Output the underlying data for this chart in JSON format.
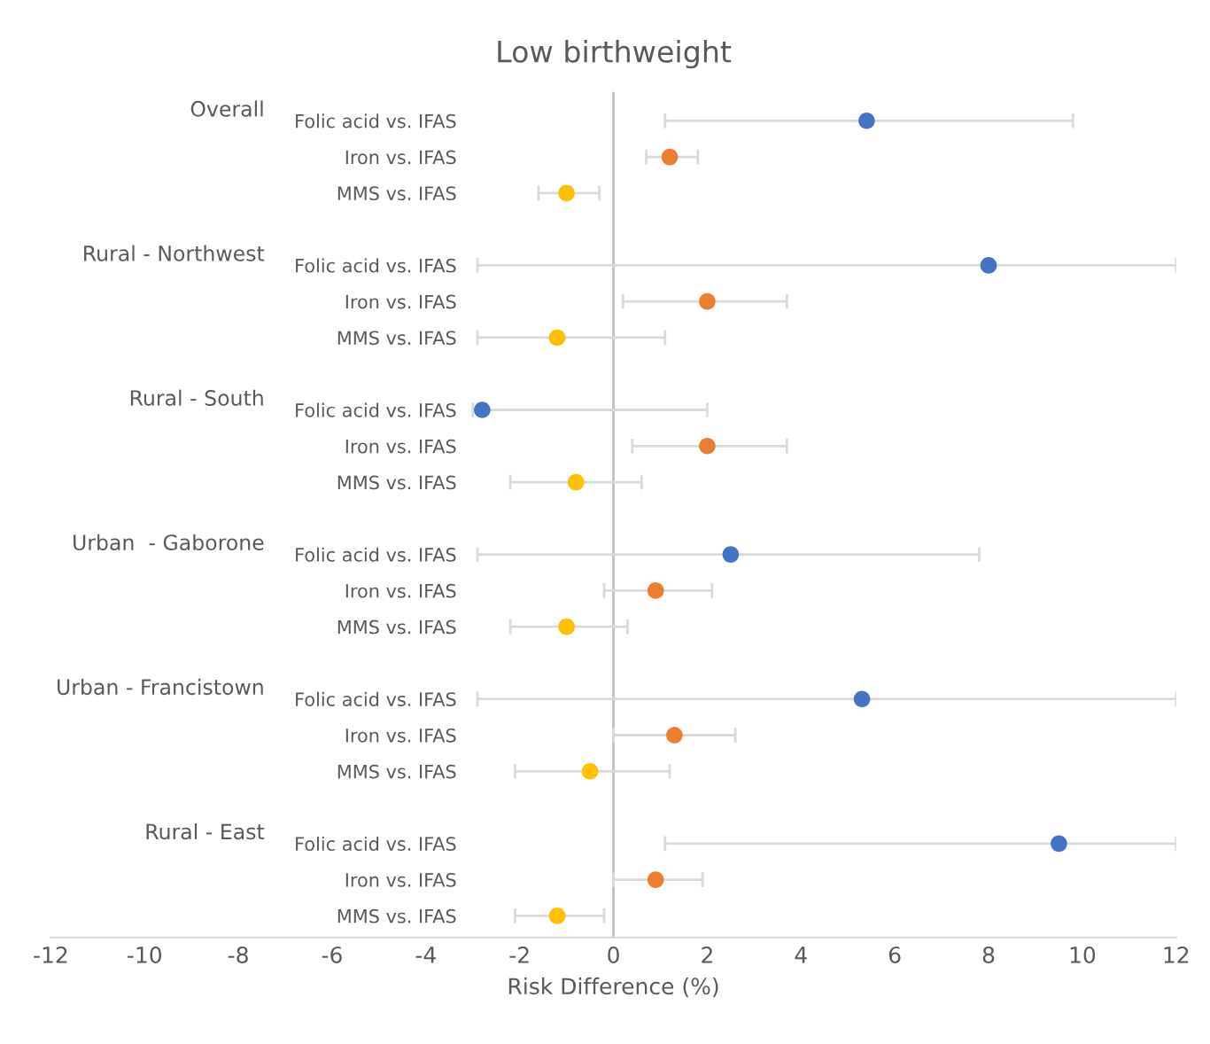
{
  "chart_data": {
    "type": "scatter",
    "orientation": "horizontal",
    "title": "Low birthweight",
    "xlabel": "Risk Difference (%)",
    "categories": [
      "Folic acid vs. IFAS",
      "Iron vs. IFAS",
      "MMS vs. IFAS",
      null,
      "Folic acid vs. IFAS",
      "Iron vs. IFAS",
      "MMS vs. IFAS",
      null,
      "Folic acid vs. IFAS",
      "Iron vs. IFAS",
      "MMS vs. IFAS",
      null,
      "Folic acid vs. IFAS",
      "Iron vs. IFAS",
      "MMS vs. IFAS",
      null,
      "Folic acid vs. IFAS",
      "Iron vs. IFAS",
      "MMS vs. IFAS",
      null,
      "Folic acid vs. IFAS",
      "Iron vs. IFAS",
      "MMS vs. IFAS"
    ],
    "annotations": [
      "Overall",
      "Rural - Northwest",
      "Rural - South",
      "Urban  - Gaborone",
      "Urban - Francistown",
      "Rural - East"
    ],
    "xlim": [
      -12,
      12
    ],
    "xticks": [
      -12,
      -10,
      -8,
      -6,
      -4,
      -2,
      0,
      2,
      4,
      6,
      8,
      10,
      12
    ],
    "grid": false,
    "legend": false,
    "ref_lines": [
      {
        "axis": "x",
        "value": 0,
        "color": "#bfbfbf"
      }
    ],
    "marker": "circle",
    "series": [
      {
        "color": "#4472c4",
        "values": [
          5.4,
          null,
          null,
          null,
          8.0,
          null,
          null,
          null,
          -2.8,
          null,
          null,
          null,
          2.5,
          null,
          null,
          null,
          5.3,
          null,
          null,
          null,
          9.5,
          null,
          null
        ],
        "errors": [
          [
            1.1,
            9.8
          ],
          null,
          null,
          null,
          [
            -2.9,
            12
          ],
          null,
          null,
          null,
          [
            -3.0,
            2.0
          ],
          null,
          null,
          null,
          [
            -2.9,
            7.8
          ],
          null,
          null,
          null,
          [
            -2.9,
            12
          ],
          null,
          null,
          null,
          [
            1.1,
            12
          ],
          null,
          null
        ]
      },
      {
        "color": "#ed7d31",
        "values": [
          null,
          1.2,
          null,
          null,
          null,
          2.0,
          null,
          null,
          null,
          2.0,
          null,
          null,
          null,
          0.9,
          null,
          null,
          null,
          1.3,
          null,
          null,
          null,
          0.9,
          null
        ],
        "errors": [
          null,
          [
            0.7,
            1.8
          ],
          null,
          null,
          null,
          [
            0.2,
            3.7
          ],
          null,
          null,
          null,
          [
            0.4,
            3.7
          ],
          null,
          null,
          null,
          [
            -0.2,
            2.1
          ],
          null,
          null,
          null,
          [
            0.0,
            2.6
          ],
          null,
          null,
          null,
          [
            0.0,
            1.9
          ],
          null
        ]
      },
      {
        "color": "#ffc000",
        "values": [
          null,
          null,
          -1.0,
          null,
          null,
          null,
          -1.2,
          null,
          null,
          null,
          -0.8,
          null,
          null,
          null,
          -1.0,
          null,
          null,
          null,
          -0.5,
          null,
          null,
          null,
          -1.2
        ],
        "errors": [
          null,
          null,
          [
            -1.6,
            -0.3
          ],
          null,
          null,
          null,
          [
            -2.9,
            1.1
          ],
          null,
          null,
          null,
          [
            -2.2,
            0.6
          ],
          null,
          null,
          null,
          [
            -2.2,
            0.3
          ],
          null,
          null,
          null,
          [
            -2.1,
            1.2
          ],
          null,
          null,
          null,
          [
            -2.1,
            -0.2
          ]
        ]
      }
    ]
  }
}
